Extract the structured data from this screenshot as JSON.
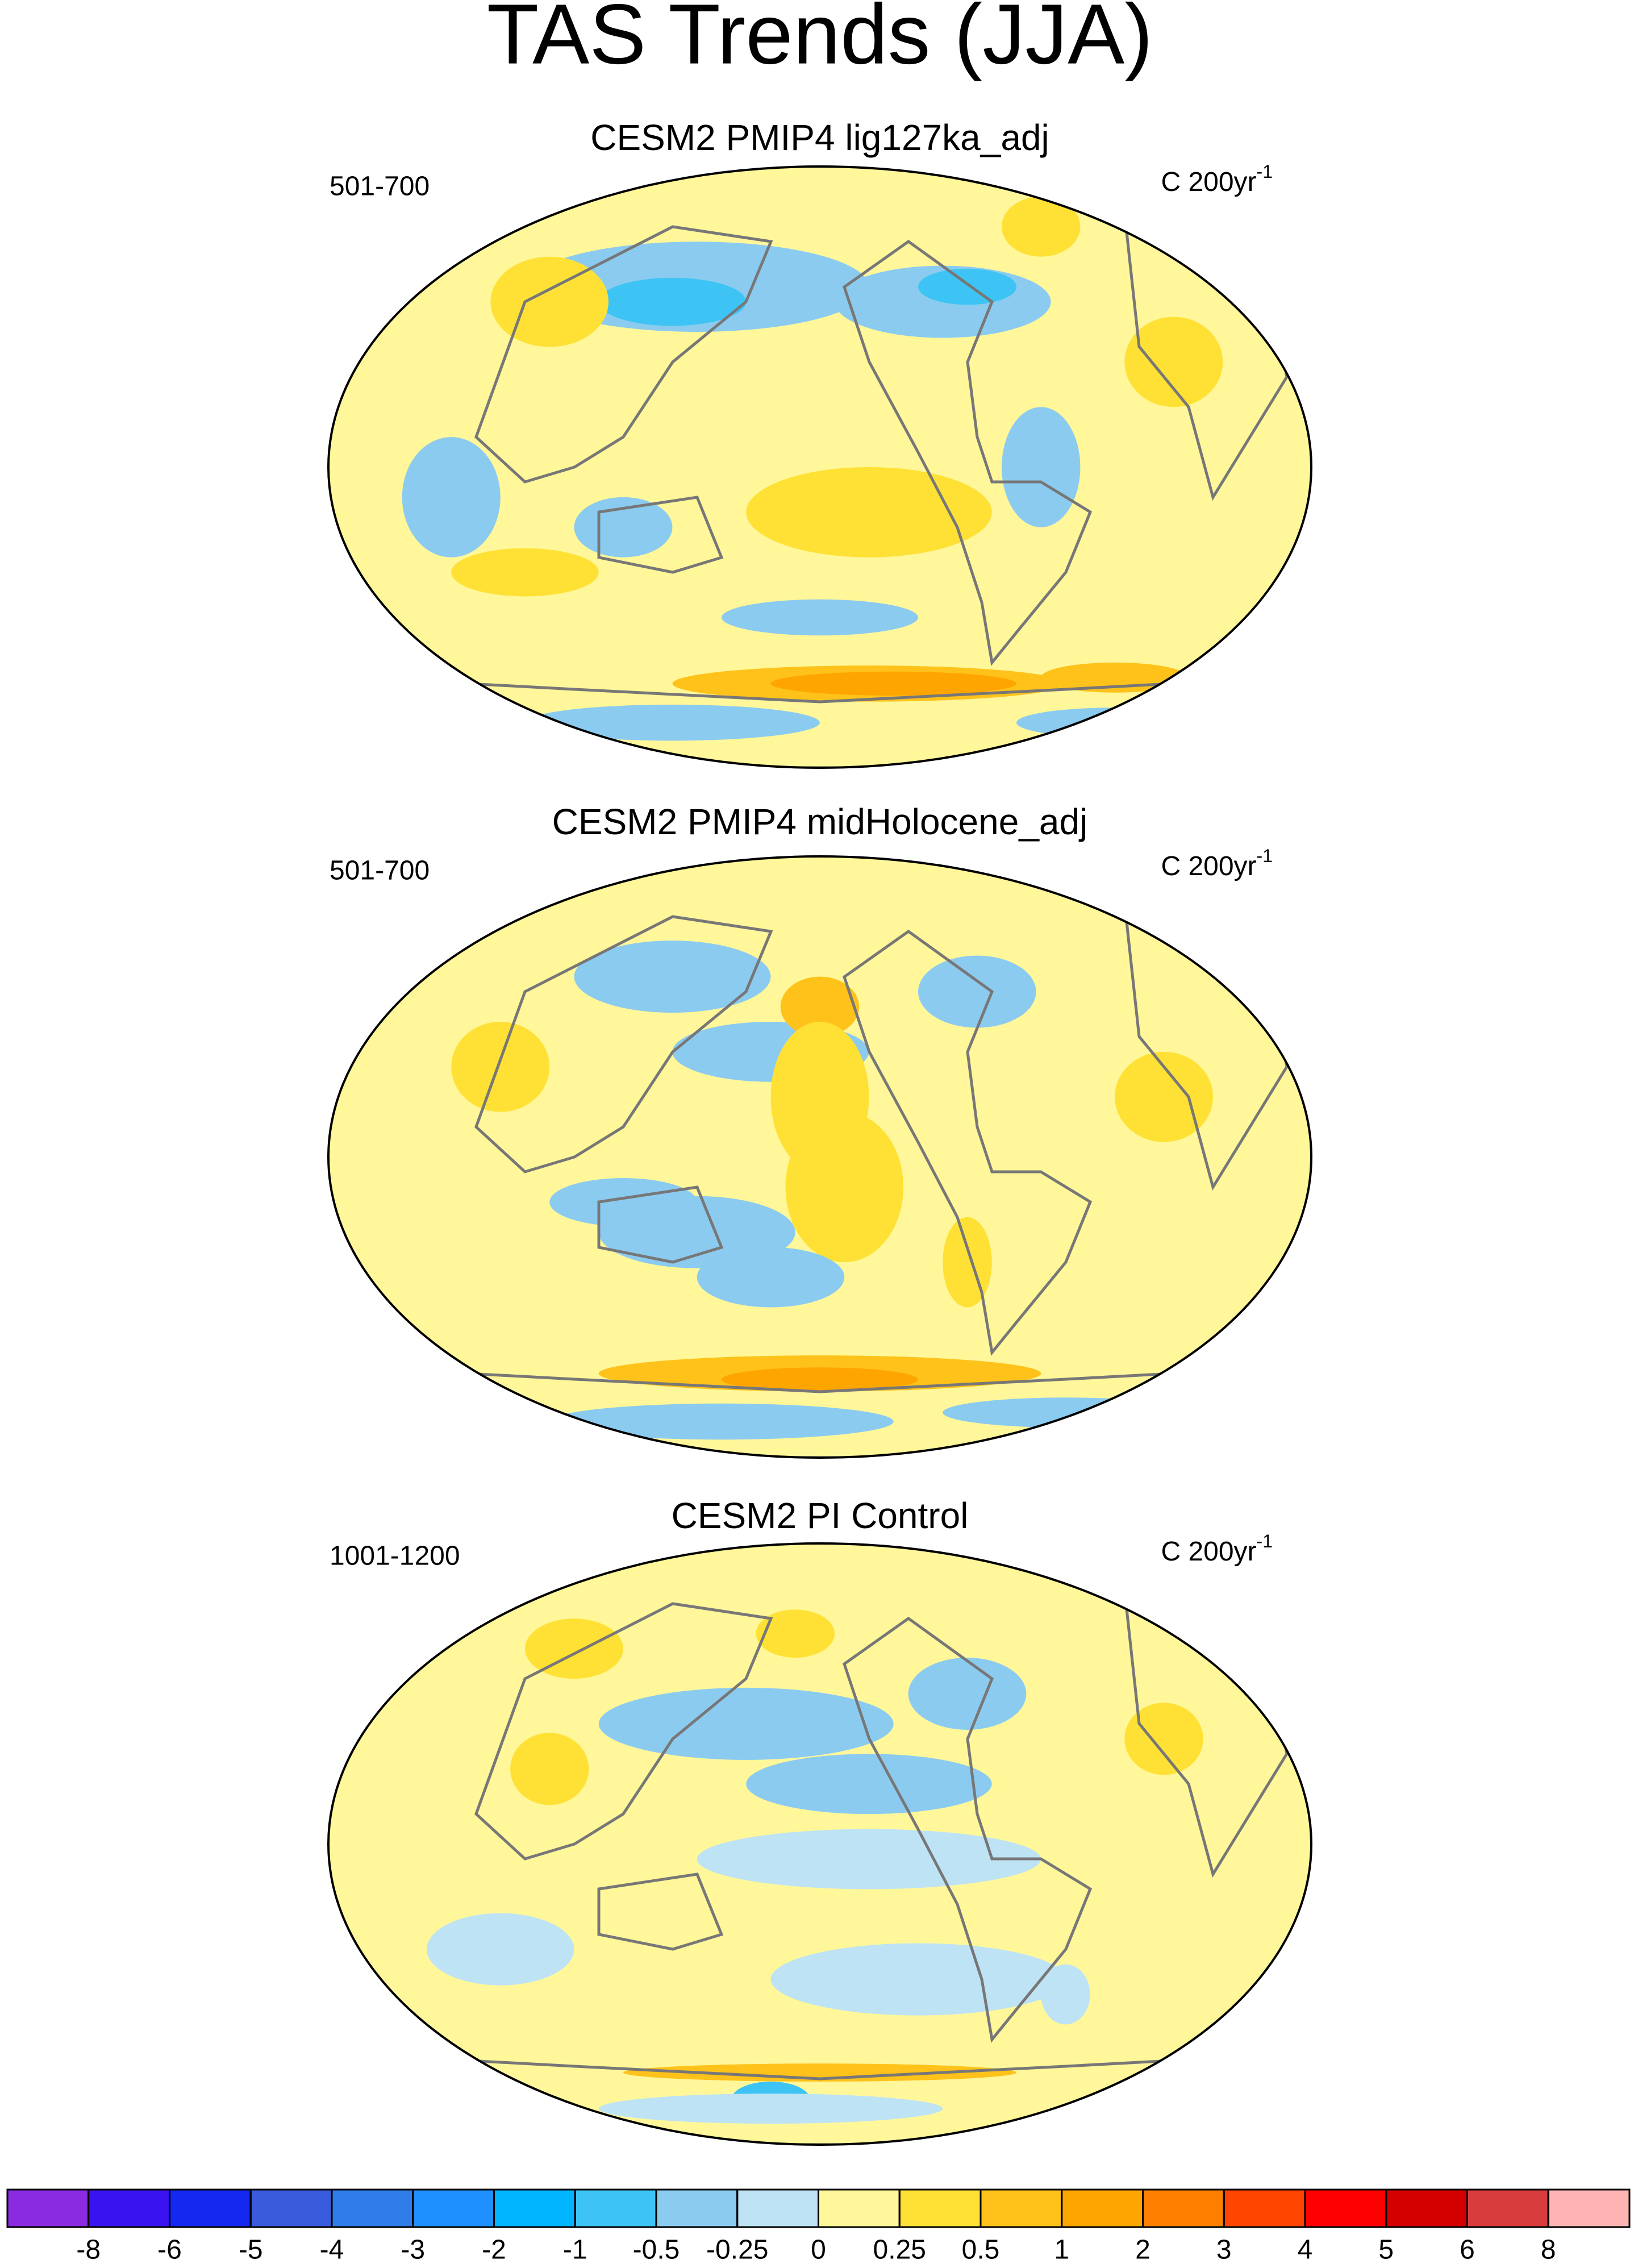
{
  "title": "TAS Trends (JJA)",
  "panels": [
    {
      "title": "CESM2 PMIP4 lig127ka_adj",
      "period": "501-700",
      "units": "C 200yr",
      "units_exponent": "-1"
    },
    {
      "title": "CESM2 PMIP4 midHolocene_adj",
      "period": "501-700",
      "units": "C 200yr",
      "units_exponent": "-1"
    },
    {
      "title": "CESM2 PI Control",
      "period": "1001-1200",
      "units": "C 200yr",
      "units_exponent": "-1"
    }
  ],
  "colorbar": {
    "levels": [
      -8,
      -6,
      -5,
      -4,
      -3,
      -2,
      -1,
      -0.5,
      -0.25,
      0,
      0.25,
      0.5,
      1,
      2,
      3,
      4,
      5,
      6,
      8
    ],
    "colors": [
      "#8a2be2",
      "#3a14f0",
      "#1428f0",
      "#3a5bdc",
      "#2e7de8",
      "#1e90ff",
      "#00b4ff",
      "#3dc4f5",
      "#8ccbf0",
      "#bee3f5",
      "#fff79a",
      "#ffe135",
      "#ffc21a",
      "#ffa500",
      "#ff7f00",
      "#ff4500",
      "#ff0000",
      "#d40000",
      "#d83c3c",
      "#ffb4b4"
    ]
  }
}
